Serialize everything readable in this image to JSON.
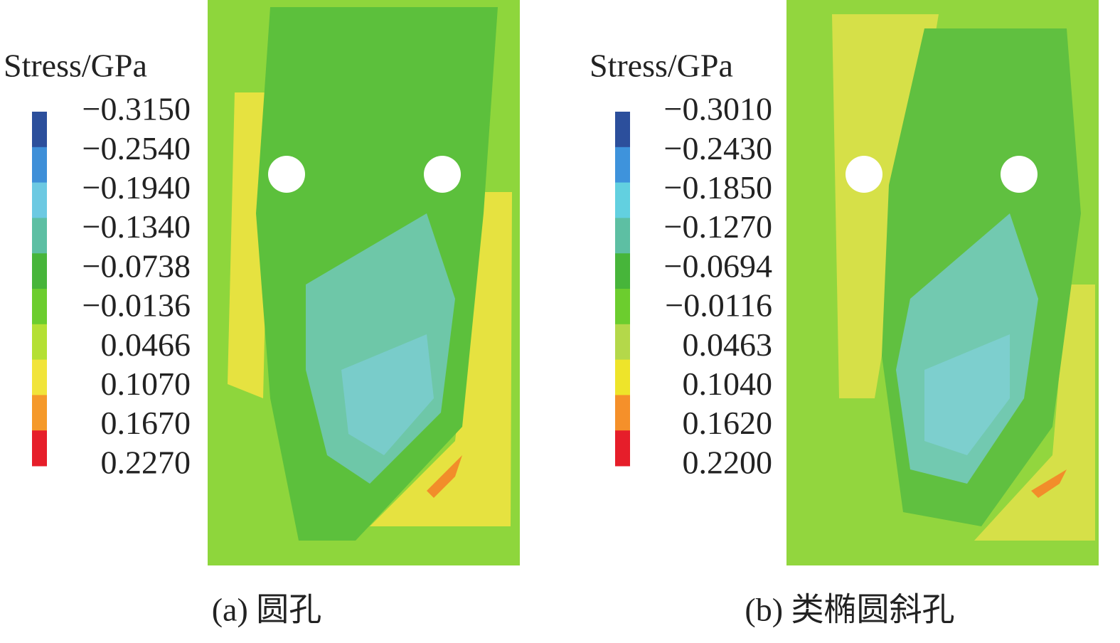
{
  "panels": [
    {
      "legend": {
        "title": "Stress/GPa",
        "labels": [
          "−0.3150",
          "−0.2540",
          "−0.1940",
          "−0.1340",
          "−0.0738",
          "−0.0136",
          "0.0466",
          "0.1070",
          "0.1670",
          "0.2270"
        ],
        "colors": [
          "#2c4f9c",
          "#3e8fd8",
          "#6cc9e2",
          "#5dbfa3",
          "#47b53a",
          "#6ccd2e",
          "#b4e034",
          "#f1e43a",
          "#f5992a",
          "#e61e2a"
        ]
      },
      "caption": "(a) 圆孔"
    },
    {
      "legend": {
        "title": "Stress/GPa",
        "labels": [
          "−0.3010",
          "−0.2430",
          "−0.1850",
          "−0.1270",
          "−0.0694",
          "−0.0116",
          "0.0463",
          "0.1040",
          "0.1620",
          "0.2200"
        ],
        "colors": [
          "#2c4f9c",
          "#3e93dc",
          "#62d0e0",
          "#5dbfa3",
          "#47b53a",
          "#6ccd2e",
          "#b4d84a",
          "#eee42a",
          "#f5902a",
          "#e61e2a"
        ]
      },
      "caption": "(b) 类椭圆斜孔"
    }
  ]
}
